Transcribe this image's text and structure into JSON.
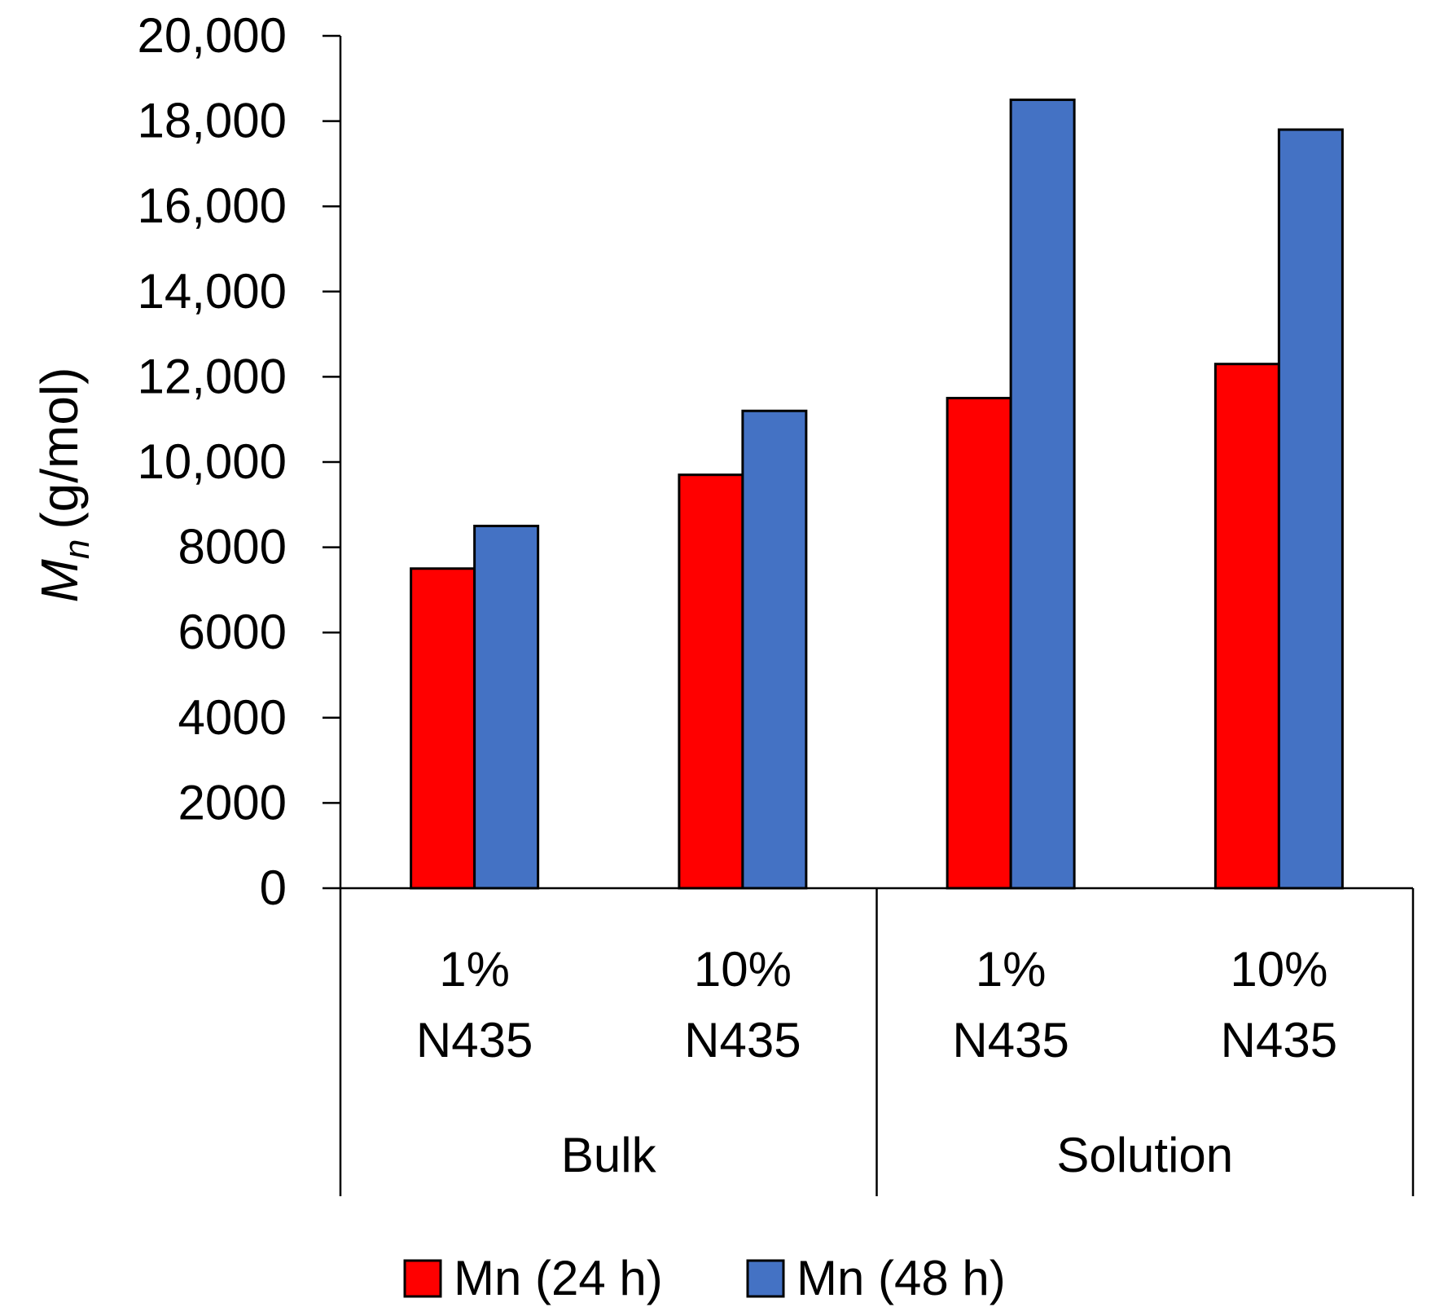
{
  "chart_data": {
    "type": "bar",
    "title": "",
    "ylabel_symbol": "M",
    "ylabel_subscript": "n",
    "ylabel_unit": "(g/mol)",
    "xlabel": "",
    "ylim": [
      0,
      20000
    ],
    "yticks": [
      {
        "value": 0,
        "label": "0"
      },
      {
        "value": 2000,
        "label": "2000"
      },
      {
        "value": 4000,
        "label": "4000"
      },
      {
        "value": 6000,
        "label": "6000"
      },
      {
        "value": 8000,
        "label": "8000"
      },
      {
        "value": 10000,
        "label": "10,000"
      },
      {
        "value": 12000,
        "label": "12,000"
      },
      {
        "value": 14000,
        "label": "14,000"
      },
      {
        "value": 16000,
        "label": "16,000"
      },
      {
        "value": 18000,
        "label": "18,000"
      },
      {
        "value": 20000,
        "label": "20,000"
      }
    ],
    "categories": [
      {
        "line1": "1%",
        "line2": "N435",
        "group": "Bulk"
      },
      {
        "line1": "10%",
        "line2": "N435",
        "group": "Bulk"
      },
      {
        "line1": "1%",
        "line2": "N435",
        "group": "Solution"
      },
      {
        "line1": "10%",
        "line2": "N435",
        "group": "Solution"
      }
    ],
    "groups": [
      "Bulk",
      "Solution"
    ],
    "series": [
      {
        "name": "Mn (24 h)",
        "color": "#ff0000",
        "values": [
          7500,
          9700,
          11500,
          12300
        ]
      },
      {
        "name": "Mn (48 h)",
        "color": "#4472c4",
        "values": [
          8500,
          11200,
          18500,
          17800
        ]
      }
    ],
    "legend_position": "bottom-center",
    "grid": false
  }
}
